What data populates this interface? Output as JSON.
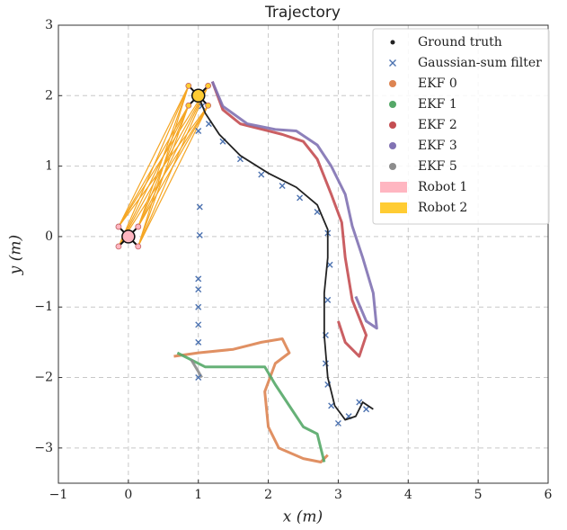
{
  "chart_data": {
    "type": "scatter",
    "title": "Trajectory",
    "xlabel": "x (m)",
    "ylabel": "y (m)",
    "xlim": [
      -1,
      6
    ],
    "ylim": [
      -3.5,
      3
    ],
    "xticks": [
      {
        "value": -1,
        "label": "−1"
      },
      0,
      1,
      2,
      3,
      4,
      5,
      6
    ],
    "yticks": [
      {
        "value": -3,
        "label": "−3"
      },
      {
        "value": -2,
        "label": "−2"
      },
      {
        "value": -1,
        "label": "−1"
      },
      0,
      1,
      2,
      3
    ],
    "grid": true,
    "legend": "upper right",
    "series": [
      {
        "name": "Ground truth",
        "color": "#222222",
        "mode": "line",
        "x": [
          1.0,
          1.1,
          1.3,
          1.6,
          2.0,
          2.4,
          2.7,
          2.85,
          2.85,
          2.8,
          2.8,
          2.85,
          2.95,
          3.1,
          3.25,
          3.35,
          3.5
        ],
        "y": [
          2.0,
          1.75,
          1.45,
          1.15,
          0.9,
          0.7,
          0.45,
          0.1,
          -0.3,
          -0.8,
          -1.4,
          -2.0,
          -2.4,
          -2.6,
          -2.55,
          -2.35,
          -2.45
        ]
      },
      {
        "name": "Gaussian-sum filter",
        "color": "#4c72b0",
        "mode": "markers",
        "x": [
          1.0,
          1.02,
          1.02,
          1.0,
          1.0,
          1.0,
          1.0,
          1.0,
          1.0,
          1.05,
          1.15,
          1.35,
          1.6,
          1.9,
          2.2,
          2.45,
          2.7,
          2.85,
          2.88,
          2.85,
          2.82,
          2.82,
          2.85,
          2.9,
          3.0,
          3.15,
          3.3,
          3.4
        ],
        "y": [
          1.5,
          0.42,
          0.02,
          -0.6,
          -0.75,
          -1.0,
          -1.25,
          -1.5,
          -2.0,
          1.85,
          1.6,
          1.35,
          1.1,
          0.88,
          0.72,
          0.55,
          0.35,
          0.05,
          -0.4,
          -0.9,
          -1.4,
          -1.8,
          -2.1,
          -2.4,
          -2.65,
          -2.55,
          -2.35,
          -2.45
        ]
      },
      {
        "name": "EKF 0",
        "color": "#dd8452",
        "mode": "trace",
        "x": [
          0.65,
          1.0,
          1.5,
          1.9,
          2.2,
          2.3,
          2.1,
          1.95,
          2.0,
          2.15,
          2.5,
          2.75,
          2.85
        ],
        "y": [
          -1.7,
          -1.65,
          -1.6,
          -1.5,
          -1.45,
          -1.65,
          -1.8,
          -2.2,
          -2.7,
          -3.0,
          -3.15,
          -3.2,
          -3.1
        ]
      },
      {
        "name": "EKF 1",
        "color": "#55a868",
        "mode": "trace",
        "x": [
          0.7,
          1.1,
          1.6,
          1.95,
          2.1,
          2.3,
          2.5,
          2.7,
          2.75,
          2.8
        ],
        "y": [
          -1.65,
          -1.85,
          -1.85,
          -1.85,
          -2.1,
          -2.4,
          -2.7,
          -2.8,
          -3.0,
          -3.2
        ]
      },
      {
        "name": "EKF 2",
        "color": "#c44e52",
        "mode": "trace",
        "x": [
          1.2,
          1.35,
          1.6,
          2.0,
          2.2,
          2.5,
          2.7,
          2.9,
          3.05,
          3.1,
          3.2,
          3.4,
          3.3,
          3.1,
          3.0
        ],
        "y": [
          2.2,
          1.8,
          1.6,
          1.5,
          1.45,
          1.35,
          1.1,
          0.6,
          0.2,
          -0.3,
          -0.9,
          -1.4,
          -1.7,
          -1.5,
          -1.2
        ]
      },
      {
        "name": "EKF 3",
        "color": "#8172b3",
        "mode": "trace",
        "x": [
          1.2,
          1.35,
          1.7,
          2.1,
          2.4,
          2.7,
          2.9,
          3.1,
          3.2,
          3.35,
          3.5,
          3.55,
          3.4,
          3.25
        ],
        "y": [
          2.2,
          1.85,
          1.6,
          1.52,
          1.5,
          1.3,
          1.0,
          0.6,
          0.15,
          -0.3,
          -0.8,
          -1.3,
          -1.2,
          -0.85
        ]
      },
      {
        "name": "EKF 5",
        "color": "#8c8c8c",
        "mode": "trace",
        "x": [
          0.9,
          1.05
        ],
        "y": [
          -1.75,
          -2.0
        ]
      }
    ],
    "robots": [
      {
        "name": "Robot 1",
        "color": "#ffb6c1",
        "x": 0,
        "y": 0
      },
      {
        "name": "Robot 2",
        "color": "#ffcc33",
        "x": 1,
        "y": 2
      }
    ]
  }
}
